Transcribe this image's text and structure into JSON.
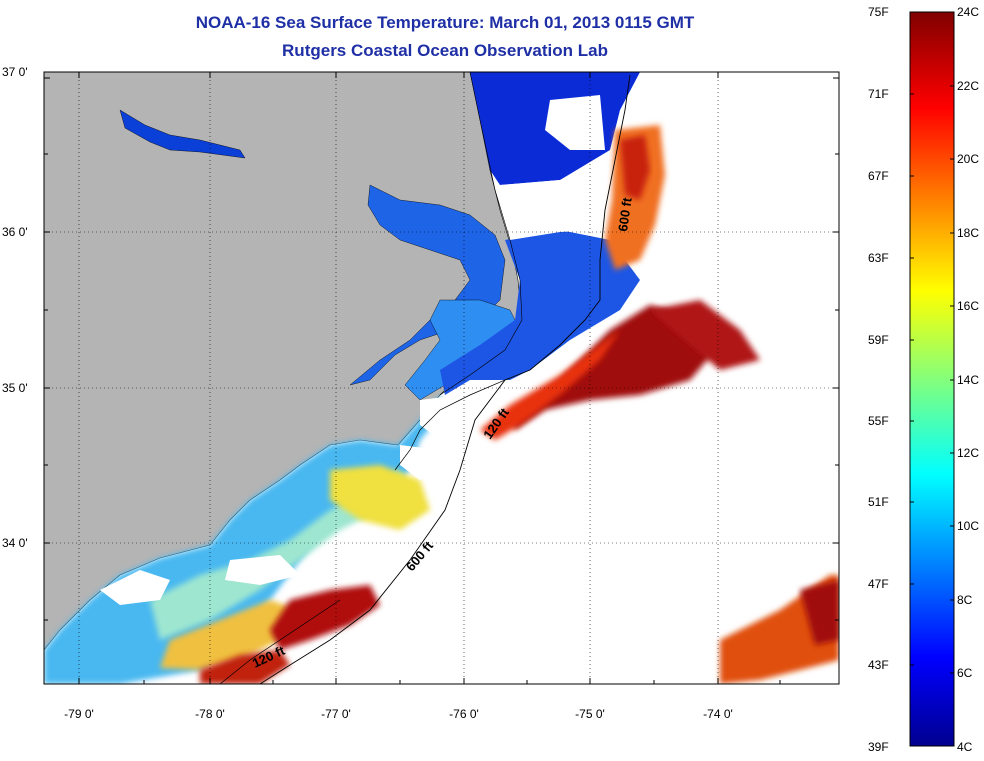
{
  "header": {
    "title": "NOAA-16 Sea Surface Temperature:  March 01, 2013 0115 GMT",
    "subtitle": "Rutgers Coastal Ocean Observation Lab"
  },
  "map": {
    "lat_labels": [
      "37 0'",
      "36 0'",
      "35 0'",
      "34 0'"
    ],
    "lon_labels": [
      "-79 0'",
      "-78 0'",
      "-77 0'",
      "-76 0'",
      "-75 0'",
      "-74 0'"
    ],
    "contour_labels": [
      "600 ft",
      "120 ft",
      "600 ft",
      "120 ft"
    ],
    "colors": {
      "land": "#b4b4b4",
      "cold": "#0a2bd6",
      "cool": "#2a8af0",
      "mid": "#8fe0f0",
      "warm": "#f0e040",
      "hot": "#a01010"
    }
  },
  "colorbar": {
    "fahrenheit_labels": [
      "75F",
      "71F",
      "67F",
      "63F",
      "59F",
      "55F",
      "51F",
      "47F",
      "43F",
      "39F"
    ],
    "celsius_labels": [
      "24C",
      "22C",
      "20C",
      "18C",
      "16C",
      "14C",
      "12C",
      "10C",
      "8C",
      "6C",
      "4C"
    ]
  }
}
